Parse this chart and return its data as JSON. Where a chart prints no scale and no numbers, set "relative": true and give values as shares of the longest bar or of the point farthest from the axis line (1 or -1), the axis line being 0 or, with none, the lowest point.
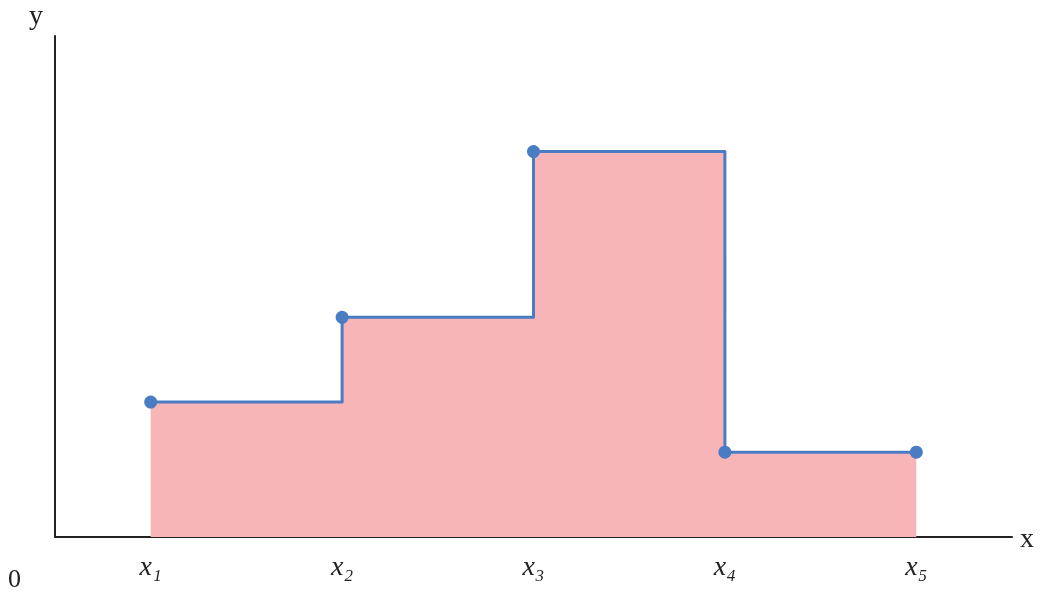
{
  "chart_data": {
    "type": "step",
    "relative": true,
    "xlabel": "x",
    "ylabel": "y",
    "annotations": [
      "0"
    ],
    "categories": [
      "x₁",
      "x₂",
      "x₃",
      "x₄",
      "x₅"
    ],
    "series": [
      {
        "type": "area",
        "color": "#f7b5b8",
        "values": [
          0.35,
          0.57,
          1,
          0.22,
          0.22
        ]
      },
      {
        "color": "#4a7cc4",
        "marker": "circle",
        "values": [
          0.35,
          0.57,
          1,
          0.22,
          0.22
        ]
      }
    ],
    "grid": false
  }
}
